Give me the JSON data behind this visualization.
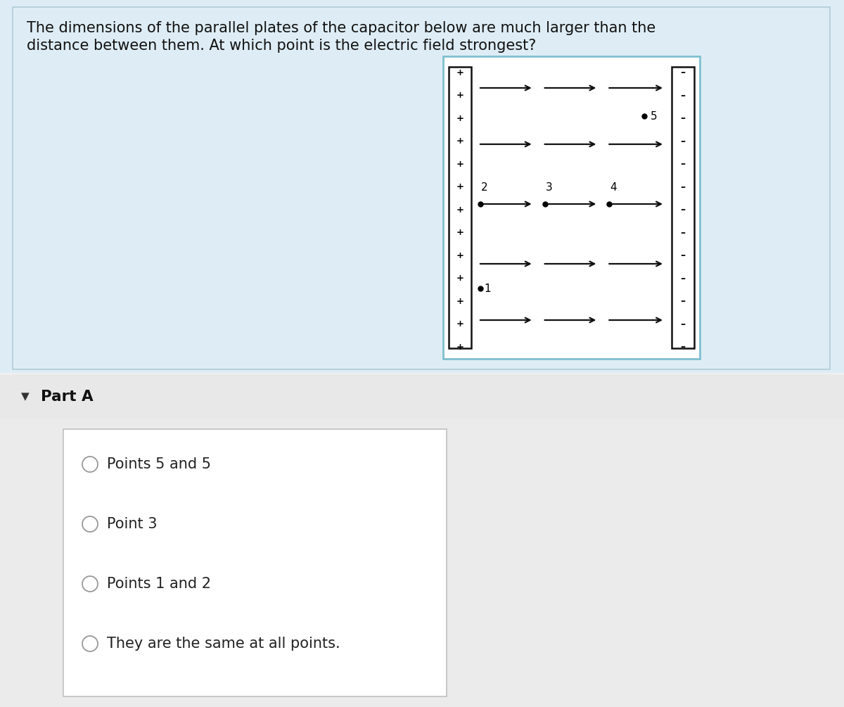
{
  "bg_top": "#deedf5",
  "bg_bottom": "#f0f0f0",
  "bg_white": "#ffffff",
  "question_text_line1": "The dimensions of the parallel plates of the capacitor below are much larger than the",
  "question_text_line2": "distance between them. At which point is the electric field strongest?",
  "part_label": "Part A",
  "options": [
    "Points 5 and 5",
    "Point 3",
    "Points 1 and 2",
    "They are the same at all points."
  ],
  "separator_color": "#cccccc",
  "radio_color": "#aaaaaa",
  "text_color": "#222222",
  "box_border_color": "#7fbfcf",
  "plate_border_color": "#111111",
  "plate_fill": "#ffffff",
  "arrow_color": "#111111",
  "dot_color": "#111111"
}
